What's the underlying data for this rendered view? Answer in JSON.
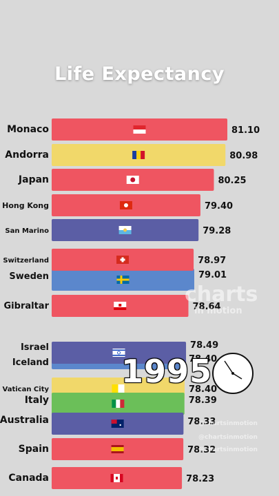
{
  "title": "Life Expectancy",
  "year": "1995",
  "watermark": {
    "brand_top": "charts",
    "brand_bottom": "in motion",
    "handles": [
      "@chartsinmotion",
      "@chartsinmotion",
      "@chartsinmotion",
      "@chartsinmotion"
    ]
  },
  "chart_data": {
    "type": "bar",
    "orientation": "horizontal",
    "title": "Life Expectancy",
    "categories": [
      "Monaco",
      "Andorra",
      "Japan",
      "Hong Kong",
      "San Marino",
      "Switzerland",
      "Sweden",
      "Gibraltar",
      "Israel",
      "Iceland",
      "Vatican City",
      "Italy",
      "Australia",
      "Spain",
      "Canada"
    ],
    "values": [
      81.1,
      80.98,
      80.25,
      79.4,
      79.28,
      78.97,
      79.01,
      78.64,
      78.49,
      78.4,
      78.4,
      78.39,
      78.33,
      78.32,
      78.23
    ],
    "value_labels": [
      "81.10",
      "80.98",
      "80.25",
      "79.40",
      "79.28",
      "78.97",
      "79.01",
      "78.64",
      "78.49",
      "78.40",
      "78.40",
      "78.39",
      "78.33",
      "78.32",
      "78.23"
    ],
    "colors": [
      "#ef5561",
      "#f1d86a",
      "#ef5561",
      "#ef5561",
      "#5b5ea5",
      "#ef5561",
      "#5b87cc",
      "#ef5561",
      "#5b5ea5",
      "#5b87cc",
      "#f1d86a",
      "#6bbf59",
      "#5b5ea5",
      "#ef5561",
      "#ef5561"
    ],
    "flags": [
      "monaco-flag",
      "andorra-flag",
      "japan-flag",
      "hong-kong-flag",
      "san-marino-flag",
      "switzerland-flag",
      "sweden-flag",
      "gibraltar-flag",
      "israel-flag",
      "iceland-flag",
      "vatican-flag",
      "italy-flag",
      "australia-flag",
      "spain-flag",
      "canada-flag"
    ],
    "grid": false,
    "legend": "none"
  }
}
